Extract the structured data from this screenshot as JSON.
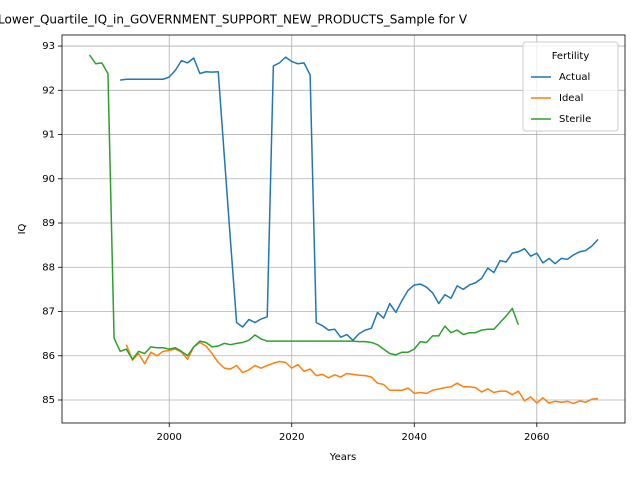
{
  "chart_data": {
    "type": "line",
    "title": "Lower_Quartile_IQ_in_GOVERNMENT_SUPPORT_NEW_PRODUCTS_Sample for V",
    "x_label": "Years",
    "y_label": "IQ",
    "legend_title": "Fertility",
    "legend": "upper right",
    "grid": true,
    "xlim": [
      1982.5,
      2074.4
    ],
    "ylim": [
      84.48,
      93.25
    ],
    "xticks": [
      2000,
      2020,
      2040,
      2060
    ],
    "yticks": [
      85,
      86,
      87,
      88,
      89,
      90,
      91,
      92,
      93
    ],
    "x": [
      1987,
      1988,
      1989,
      1990,
      1991,
      1992,
      1993,
      1994,
      1995,
      1996,
      1997,
      1998,
      1999,
      2000,
      2001,
      2002,
      2003,
      2004,
      2005,
      2006,
      2007,
      2008,
      2009,
      2010,
      2011,
      2012,
      2013,
      2014,
      2015,
      2016,
      2017,
      2018,
      2019,
      2020,
      2021,
      2022,
      2023,
      2024,
      2025,
      2026,
      2027,
      2028,
      2029,
      2030,
      2031,
      2032,
      2033,
      2034,
      2035,
      2036,
      2037,
      2038,
      2039,
      2040,
      2041,
      2042,
      2043,
      2044,
      2045,
      2046,
      2047,
      2048,
      2049,
      2050,
      2051,
      2052,
      2053,
      2054,
      2055,
      2056,
      2057,
      2058,
      2059,
      2060,
      2061,
      2062,
      2063,
      2064,
      2065,
      2066,
      2067,
      2068,
      2069,
      2070
    ],
    "series": [
      {
        "name": "Actual",
        "color": "#1f77b4",
        "values": [
          null,
          null,
          null,
          null,
          null,
          92.23,
          92.25,
          92.25,
          92.25,
          92.25,
          92.25,
          92.25,
          92.25,
          92.3,
          92.45,
          92.67,
          92.62,
          92.73,
          92.38,
          92.42,
          92.41,
          92.42,
          90.5,
          88.6,
          86.75,
          86.65,
          86.82,
          86.75,
          86.83,
          86.88,
          92.55,
          92.62,
          92.75,
          92.65,
          92.6,
          92.62,
          92.35,
          86.75,
          86.68,
          86.58,
          86.6,
          86.42,
          86.48,
          86.35,
          86.5,
          86.58,
          86.62,
          86.98,
          86.85,
          87.18,
          86.98,
          87.25,
          87.48,
          87.6,
          87.62,
          87.55,
          87.42,
          87.18,
          87.38,
          87.3,
          87.58,
          87.5,
          87.6,
          87.65,
          87.75,
          87.98,
          87.88,
          88.15,
          88.12,
          88.32,
          88.35,
          88.42,
          88.25,
          88.32,
          88.1,
          88.2,
          88.08,
          88.2,
          88.18,
          88.28,
          88.35,
          88.38,
          88.48,
          88.63
        ]
      },
      {
        "name": "Ideal",
        "color": "#ff7f0e",
        "values": [
          null,
          null,
          null,
          null,
          null,
          null,
          86.25,
          85.9,
          86.05,
          85.82,
          86.08,
          86.0,
          86.1,
          86.12,
          86.15,
          86.08,
          85.92,
          86.2,
          86.3,
          86.22,
          86.05,
          85.85,
          85.72,
          85.7,
          85.78,
          85.62,
          85.68,
          85.78,
          85.72,
          85.78,
          85.83,
          85.87,
          85.85,
          85.72,
          85.8,
          85.65,
          85.7,
          85.55,
          85.58,
          85.5,
          85.57,
          85.52,
          85.6,
          85.58,
          85.56,
          85.55,
          85.52,
          85.38,
          85.35,
          85.22,
          85.22,
          85.22,
          85.27,
          85.15,
          85.17,
          85.15,
          85.22,
          85.25,
          85.28,
          85.3,
          85.38,
          85.3,
          85.3,
          85.28,
          85.18,
          85.25,
          85.17,
          85.2,
          85.2,
          85.12,
          85.2,
          84.98,
          85.07,
          84.93,
          85.05,
          84.93,
          84.97,
          84.95,
          84.97,
          84.92,
          84.98,
          84.95,
          85.02,
          85.03
        ]
      },
      {
        "name": "Sterile",
        "color": "#2ca02c",
        "values": [
          92.8,
          92.6,
          92.62,
          92.38,
          86.4,
          86.1,
          86.15,
          85.92,
          86.1,
          86.05,
          86.2,
          86.18,
          86.18,
          86.15,
          86.18,
          86.1,
          86.0,
          86.2,
          86.33,
          86.3,
          86.2,
          86.22,
          86.28,
          86.25,
          86.28,
          86.3,
          86.35,
          86.47,
          86.38,
          86.33,
          86.33,
          86.33,
          86.33,
          86.33,
          86.33,
          86.33,
          86.33,
          86.33,
          86.33,
          86.33,
          86.33,
          86.33,
          86.33,
          86.33,
          86.32,
          86.32,
          86.3,
          86.25,
          86.15,
          86.05,
          86.02,
          86.08,
          86.08,
          86.15,
          86.32,
          86.3,
          86.45,
          86.45,
          86.67,
          86.52,
          86.58,
          86.48,
          86.52,
          86.52,
          86.58,
          86.6,
          86.6,
          86.75,
          86.9,
          87.07,
          86.7,
          null,
          null,
          null,
          null,
          null,
          null,
          null,
          null,
          null,
          null,
          null,
          null,
          null
        ]
      }
    ]
  }
}
